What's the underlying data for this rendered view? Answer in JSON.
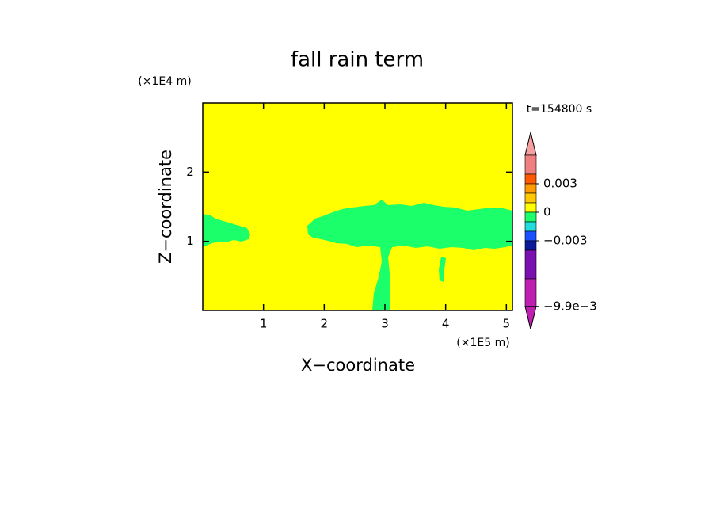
{
  "chart_data": {
    "type": "contour",
    "title": "fall rain term",
    "time_label": "t=154800 s",
    "x_label": "X−coordinate",
    "y_label": "Z−coordinate",
    "x_unit": "(×1E5 m)",
    "y_unit": "(×1E4 m)",
    "xlim": [
      0,
      5.1
    ],
    "xticks": [
      1,
      2,
      3,
      4,
      5
    ],
    "ylim": [
      0,
      3
    ],
    "yticks": [
      1,
      2
    ],
    "colorbar": {
      "levels": [
        0.006,
        0.004,
        0.003,
        0.002,
        0.001,
        0,
        -0.001,
        -0.002,
        -0.003,
        -0.004,
        -0.007,
        -0.0099
      ],
      "colors": [
        "#f4a0a0",
        "#f08080",
        "#ff5a00",
        "#ff9a00",
        "#ffc800",
        "#ffff00",
        "#1aff6a",
        "#22dddd",
        "#1a50ff",
        "#0a1a9a",
        "#7a10b0",
        "#c020b0",
        "#c020b0"
      ],
      "ticks": [
        {
          "value": 0.003,
          "label": "0.003"
        },
        0,
        {
          "value": -0.003,
          "label": "−0.003"
        },
        {
          "value": -0.0099,
          "label": "−9.9e−3"
        }
      ]
    }
  }
}
